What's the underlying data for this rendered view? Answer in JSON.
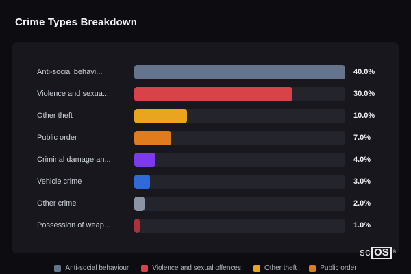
{
  "page": {
    "title": "Crime Types Breakdown",
    "background": "#0c0c11",
    "panel_background": "#17171d"
  },
  "chart_data": {
    "type": "bar",
    "orientation": "horizontal",
    "title": "Crime Types Breakdown",
    "categories": [
      "Anti-social behavi...",
      "Violence and sexua...",
      "Other theft",
      "Public order",
      "Criminal damage an...",
      "Vehicle crime",
      "Other crime",
      "Possession of weap..."
    ],
    "values": [
      40.0,
      30.0,
      10.0,
      7.0,
      4.0,
      3.0,
      2.0,
      1.0
    ],
    "value_labels": [
      "40.0%",
      "30.0%",
      "10.0%",
      "7.0%",
      "4.0%",
      "3.0%",
      "2.0%",
      "1.0%"
    ],
    "bar_colors": [
      "#64748C",
      "#D8434A",
      "#E8A51D",
      "#E07C1E",
      "#7C3AED",
      "#2E6BD8",
      "#8B95A5",
      "#B0303A"
    ],
    "track_color": "#24242c",
    "xlabel": "",
    "ylabel": "",
    "xlim": [
      0,
      40
    ],
    "grid": false,
    "legend_position": "bottom"
  },
  "legend": {
    "items": [
      {
        "label": "Anti-social behaviour",
        "color": "#64748C"
      },
      {
        "label": "Violence and sexual offences",
        "color": "#D8434A"
      },
      {
        "label": "Other theft",
        "color": "#E8A51D"
      },
      {
        "label": "Public order",
        "color": "#E07C1E"
      }
    ]
  },
  "logo": {
    "text_sc": "sc",
    "text_os": "OS",
    "registered": "®"
  }
}
